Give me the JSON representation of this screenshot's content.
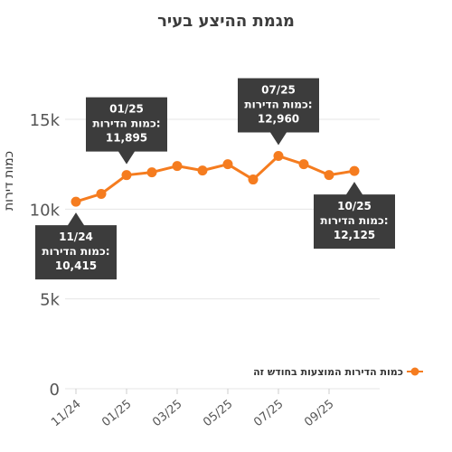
{
  "chart_data": {
    "type": "line",
    "title": "מגמת ההיצע בעיר",
    "xlabel": "",
    "ylabel": "כמות דירות",
    "categories": [
      "11/24",
      "12/24",
      "01/25",
      "02/25",
      "03/25",
      "04/25",
      "05/25",
      "06/25",
      "07/25",
      "08/25",
      "09/25",
      "10/25"
    ],
    "x_tick_labels": [
      "11/24",
      "01/25",
      "03/25",
      "05/25",
      "07/25",
      "09/25"
    ],
    "y_ticks": [
      0,
      5000,
      10000,
      15000
    ],
    "y_tick_labels": [
      "0",
      "5k",
      "10k",
      "15k"
    ],
    "ylim": [
      0,
      15000
    ],
    "grid": true,
    "legend_position": "right",
    "series": [
      {
        "name": "כמות הדירות המוצעות בחודש זה",
        "color": "#f57c1f",
        "values": [
          10415,
          10850,
          11895,
          12050,
          12400,
          12150,
          12500,
          11650,
          12960,
          12500,
          11900,
          12125
        ]
      }
    ],
    "annotations": [
      {
        "index": 0,
        "date": "11/24",
        "label": "כמות הדירות:",
        "value": "10,415",
        "placement": "below"
      },
      {
        "index": 2,
        "date": "01/25",
        "label": "כמות הדירות:",
        "value": "11,895",
        "placement": "above"
      },
      {
        "index": 8,
        "date": "07/25",
        "label": "כמות הדירות:",
        "value": "12,960",
        "placement": "above"
      },
      {
        "index": 11,
        "date": "10/25",
        "label": "כמות הדירות:",
        "value": "12,125",
        "placement": "below"
      }
    ],
    "annotation_color": "#3c3c3c"
  }
}
